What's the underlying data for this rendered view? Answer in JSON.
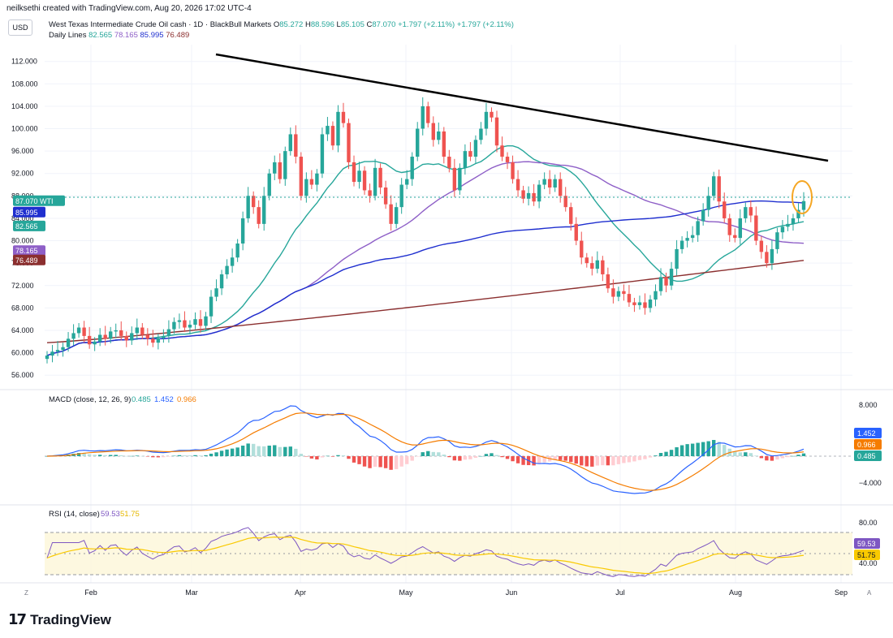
{
  "header": {
    "credit": "neilksethi created with TradingView.com, Aug 20, 2026 17:02 UTC-4",
    "currency_button": "USD",
    "symbol_title": "West Texas Intermediate Crude Oil cash · 1D · BlackBull Markets",
    "ohlc": {
      "o_label": "O",
      "o": "85.272",
      "h_label": "H",
      "h": "88.596",
      "l_label": "L",
      "l": "85.105",
      "c_label": "C",
      "c": "87.070",
      "change": "+1.797 (+2.11%)",
      "change2": "+1.797 (+2.11%)"
    },
    "indicator_name": "Daily Lines",
    "indicator_values": [
      {
        "value": "82.565",
        "color": "#26a69a"
      },
      {
        "value": "78.165",
        "color": "#8e5fc7"
      },
      {
        "value": "85.995",
        "color": "#1f2fcf"
      },
      {
        "value": "76.489",
        "color": "#8b2f2f"
      }
    ]
  },
  "colors": {
    "up": "#26a69a",
    "down": "#ef5350",
    "sma20": "#26a69a",
    "sma50": "#8e5fc7",
    "sma100": "#1f2fcf",
    "sma200": "#8b2f2f",
    "macd": "#2962ff",
    "signal": "#f57c00",
    "rsi": "#7e57c2",
    "rsi_ma": "#f9c900",
    "trendline": "#000000",
    "highlight": "#f5a623"
  },
  "price_labels": [
    {
      "text": "87.070 WTI",
      "color": "#26a69a"
    },
    {
      "text": "85.995",
      "color": "#1f2fcf"
    },
    {
      "text": "82.565",
      "color": "#26a69a"
    },
    {
      "text": "78.165",
      "color": "#8e5fc7"
    },
    {
      "text": "76.489",
      "color": "#8b2f2f"
    }
  ],
  "x_labels": [
    "Feb",
    "Mar",
    "Apr",
    "May",
    "Jun",
    "Jul",
    "Aug",
    "Sep"
  ],
  "corner_labels": {
    "left": "Z",
    "right": "A"
  },
  "macd_pane": {
    "title": "MACD (close, 12, 26, 9)",
    "values": [
      {
        "text": "0.485",
        "color": "#26a69a"
      },
      {
        "text": "1.452",
        "color": "#2962ff"
      },
      {
        "text": "0.966",
        "color": "#f57c00"
      }
    ],
    "y_labels": [
      "8.000",
      "−4.000"
    ],
    "labels": [
      {
        "text": "1.452",
        "color": "#2962ff"
      },
      {
        "text": "0.966",
        "color": "#f57c00"
      },
      {
        "text": "0.485",
        "color": "#26a69a"
      }
    ]
  },
  "rsi_pane": {
    "title": "RSI (14, close)",
    "values": [
      {
        "text": "59.53",
        "color": "#7e57c2"
      },
      {
        "text": "51.75",
        "color": "#e6b800"
      }
    ],
    "y_labels": [
      "80.00",
      "40.00"
    ],
    "labels": [
      {
        "text": "59.53",
        "color": "#7e57c2"
      },
      {
        "text": "51.75",
        "color": "#f9c900"
      }
    ]
  },
  "footer": {
    "brand": "TradingView"
  },
  "chart_data": {
    "type": "candlestick",
    "title": "West Texas Intermediate Crude Oil cash · 1D · BlackBull Markets",
    "x_axis_labels": [
      "Feb",
      "Mar",
      "Apr",
      "May",
      "Jun",
      "Jul",
      "Aug",
      "Sep"
    ],
    "y_ticks": [
      56,
      60,
      64,
      68,
      72,
      76,
      80,
      84,
      88,
      92,
      96,
      100,
      104,
      108,
      112
    ],
    "ylim": [
      54,
      115
    ],
    "last_close": 87.07,
    "close_series": [
      59.5,
      60.2,
      60.5,
      61.0,
      62.5,
      63.5,
      64.5,
      63.0,
      61.5,
      62.0,
      63.2,
      62.5,
      63.8,
      64.0,
      63.0,
      62.2,
      63.5,
      64.5,
      63.2,
      62.5,
      61.8,
      62.6,
      63.0,
      64.2,
      65.5,
      65.8,
      64.5,
      65.0,
      66.0,
      64.8,
      66.5,
      70.0,
      71.5,
      74.0,
      75.5,
      77.0,
      79.5,
      84.0,
      88.0,
      86.0,
      83.0,
      88.0,
      92.0,
      94.0,
      91.0,
      96.0,
      99.0,
      95.0,
      88.0,
      91.0,
      90.0,
      92.0,
      99.0,
      100.5,
      97.0,
      103.0,
      101.0,
      94.0,
      90.5,
      92.5,
      89.0,
      88.0,
      93.0,
      89.5,
      86.5,
      83.0,
      86.0,
      90.0,
      91.0,
      95.0,
      100.0,
      104.0,
      101.0,
      98.0,
      99.5,
      95.0,
      93.0,
      89.0,
      93.0,
      96.0,
      95.0,
      98.0,
      100.0,
      103.0,
      102.0,
      97.0,
      95.0,
      94.0,
      91.0,
      89.0,
      87.5,
      88.5,
      87.0,
      90.0,
      91.0,
      89.5,
      91.0,
      88.0,
      86.0,
      83.0,
      80.0,
      77.0,
      76.0,
      75.0,
      76.5,
      74.0,
      71.5,
      70.0,
      71.0,
      70.5,
      69.0,
      68.5,
      69.0,
      68.0,
      69.5,
      71.0,
      73.5,
      72.0,
      75.0,
      78.5,
      80.0,
      80.5,
      81.0,
      83.5,
      85.5,
      88.0,
      91.5,
      87.0,
      84.0,
      81.0,
      80.5,
      84.0,
      86.0,
      84.5,
      80.0,
      78.0,
      76.0,
      78.5,
      81.5,
      82.5,
      83.0,
      84.0,
      85.5,
      87.07
    ],
    "series": [
      {
        "name": "SMA 20",
        "last": 82.565
      },
      {
        "name": "SMA 50",
        "last": 78.165
      },
      {
        "name": "SMA 100",
        "last": 85.995
      },
      {
        "name": "SMA 200",
        "last": 76.489
      }
    ],
    "macd": {
      "macd": 1.452,
      "signal": 0.966,
      "histogram": 0.485,
      "ylim": [
        -6,
        10
      ]
    },
    "rsi": {
      "rsi": 59.53,
      "ma": 51.75,
      "ylim": [
        20,
        100
      ],
      "bands": [
        70,
        30
      ]
    }
  }
}
